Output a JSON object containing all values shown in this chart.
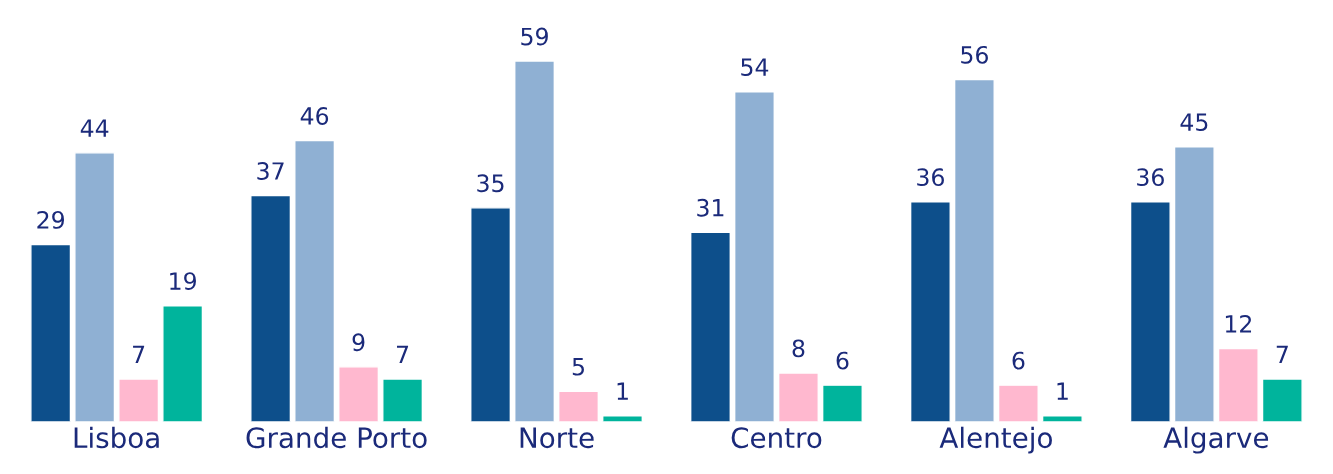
{
  "chart_data": {
    "type": "bar",
    "categories": [
      "Lisboa",
      "Grande Porto",
      "Norte",
      "Centro",
      "Alentejo",
      "Algarve"
    ],
    "series": [
      {
        "color": "#0d4f8b",
        "values": [
          29,
          37,
          35,
          31,
          36,
          36
        ]
      },
      {
        "color": "#8fb0d3",
        "values": [
          44,
          46,
          59,
          54,
          56,
          45
        ]
      },
      {
        "color": "#ffb8cf",
        "values": [
          7,
          9,
          5,
          8,
          6,
          12
        ]
      },
      {
        "color": "#00b49c",
        "values": [
          19,
          7,
          1,
          6,
          1,
          7
        ]
      }
    ],
    "data_labels": true,
    "tick_labels": "x"
  }
}
